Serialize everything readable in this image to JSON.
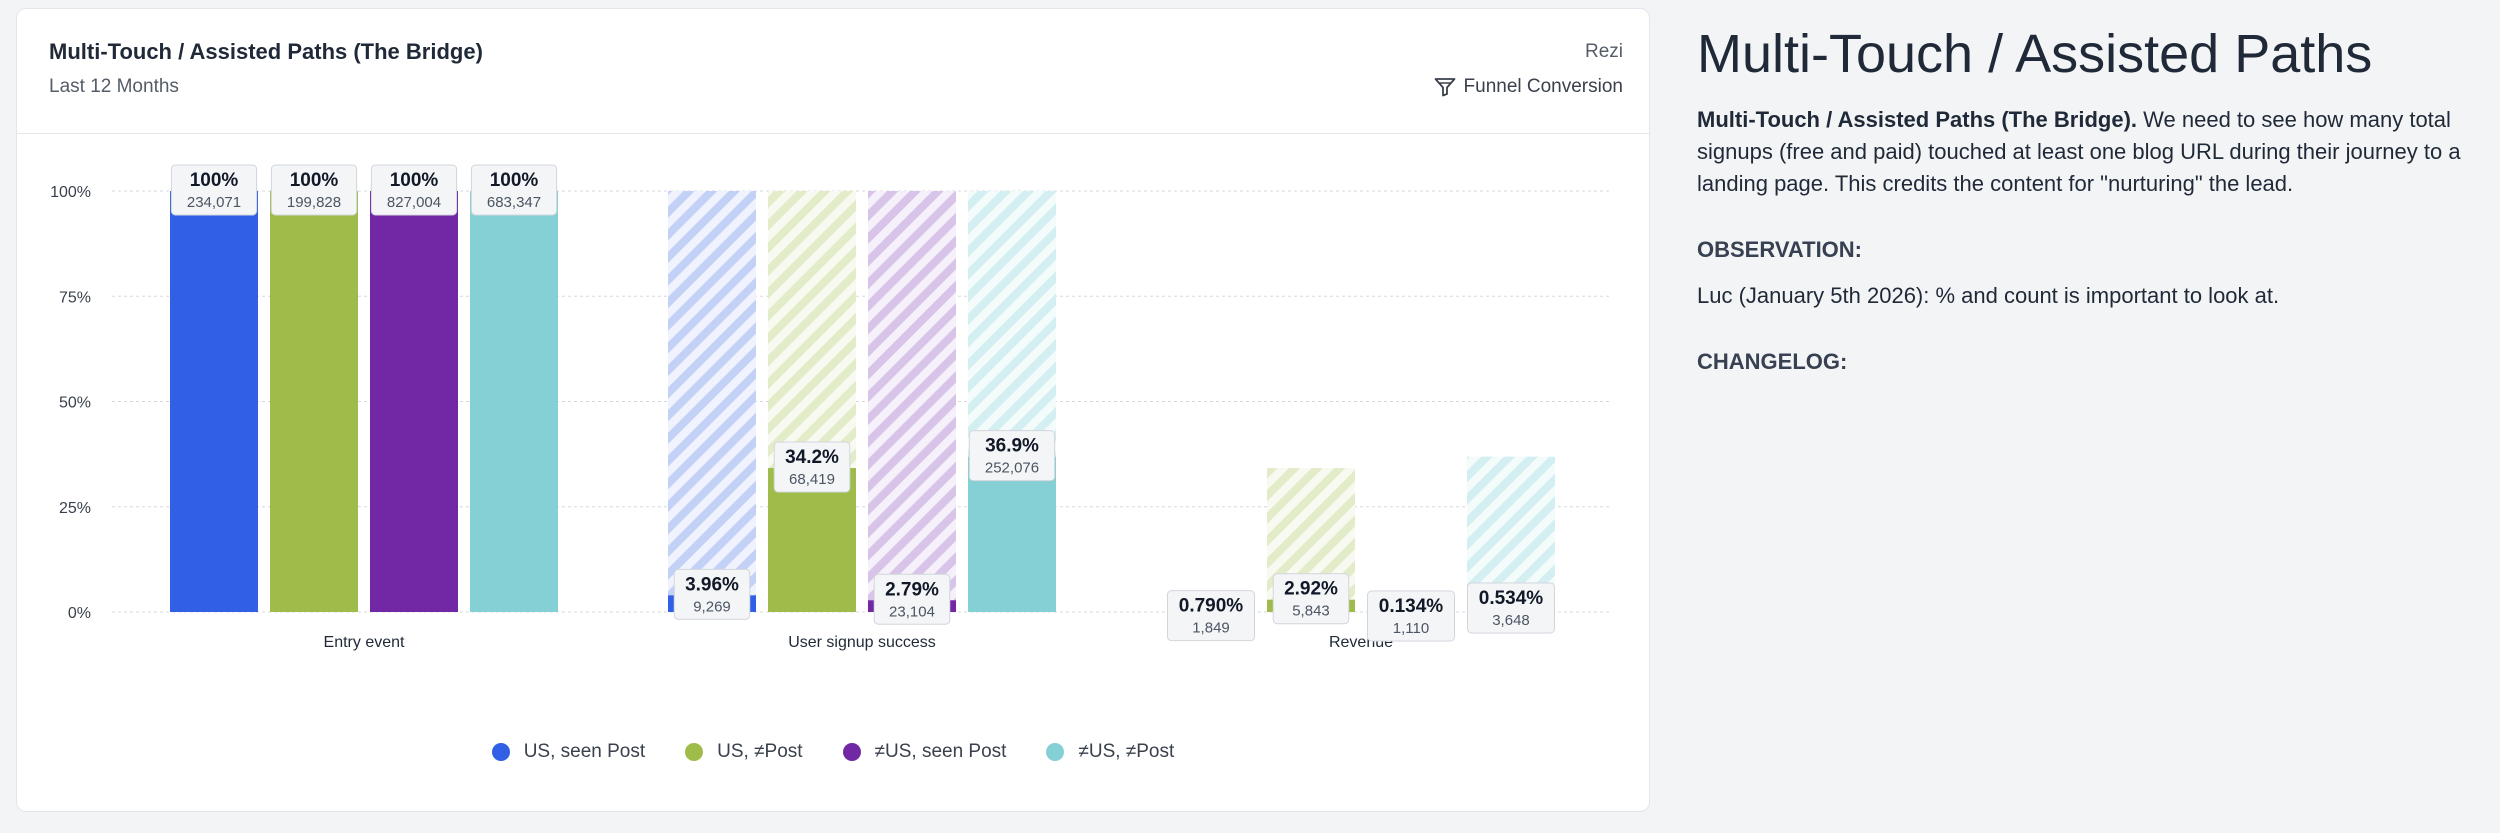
{
  "card": {
    "title": "Multi-Touch / Assisted Paths (The Bridge)",
    "subtitle": "Last 12 Months",
    "owner": "Rezi",
    "metric_label": "Funnel Conversion",
    "metric_icon": "funnel-icon"
  },
  "chart_data": {
    "type": "bar",
    "variant": "funnel",
    "categories": [
      "Entry event",
      "User signup success",
      "Revenue"
    ],
    "ylim": [
      0,
      100
    ],
    "yticks": [
      0,
      25,
      50,
      75,
      100
    ],
    "ytick_labels": [
      "0%",
      "25%",
      "50%",
      "75%",
      "100%"
    ],
    "grid": true,
    "legend_position": "bottom",
    "series": [
      {
        "name": "US, seen Post",
        "color": "#3160e7",
        "light": "#c3d1f7",
        "values": [
          100,
          3.96,
          0.79
        ],
        "value_labels": [
          "100%",
          "3.96%",
          "0.790%"
        ],
        "counts": [
          "234,071",
          "9,269",
          "1,849"
        ]
      },
      {
        "name": "US, ≠Post",
        "color": "#9fbc4b",
        "light": "#e3ecc8",
        "values": [
          100,
          34.2,
          2.92
        ],
        "value_labels": [
          "100%",
          "34.2%",
          "2.92%"
        ],
        "counts": [
          "199,828",
          "68,419",
          "5,843"
        ]
      },
      {
        "name": "≠US, seen Post",
        "color": "#7227a4",
        "light": "#d7c4e8",
        "values": [
          100,
          2.79,
          0.134
        ],
        "value_labels": [
          "100%",
          "2.79%",
          "0.134%"
        ],
        "counts": [
          "827,004",
          "23,104",
          "1,110"
        ]
      },
      {
        "name": "≠US, ≠Post",
        "color": "#84d0d5",
        "light": "#d3eff1",
        "values": [
          100,
          36.9,
          0.534
        ],
        "value_labels": [
          "100%",
          "36.9%",
          "0.534%"
        ],
        "counts": [
          "683,347",
          "252,076",
          "3,648"
        ]
      }
    ]
  },
  "notes": {
    "heading": "Multi-Touch / Assisted Paths",
    "lead_bold": "Multi-Touch / Assisted Paths (The Bridge).",
    "lead_text": " We need to see how many total signups (free and paid) touched at least one blog URL during their journey to a landing page. This credits the content for \"nurturing\" the lead.",
    "observation_label": "OBSERVATION:",
    "observation_text": "Luc (January 5th 2026): % and count is important to look at.",
    "changelog_label": "CHANGELOG:"
  }
}
